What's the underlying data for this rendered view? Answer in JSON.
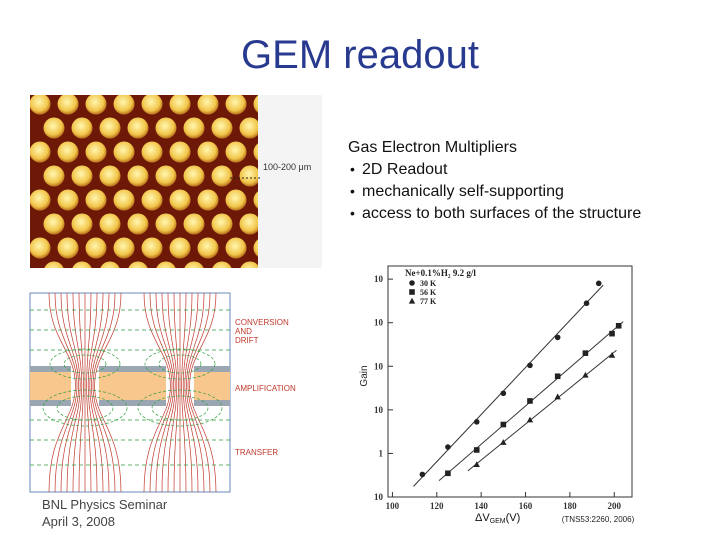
{
  "title": "GEM readout",
  "text_block": {
    "heading": "Gas Electron Multipliers",
    "bullets": [
      "2D Readout",
      "mechanically self-supporting",
      "access to both surfaces of the structure"
    ]
  },
  "photo": {
    "scale_label": "100-200 μm"
  },
  "field_diagram": {
    "labels": [
      "CONVERSION",
      "AND",
      "DRIFT",
      "AMPLIFICATION",
      "TRANSFER"
    ]
  },
  "gain_plot": {
    "type": "scatter",
    "legend_title": "Ne+0.1%H₂ 9.2 g/l",
    "y_label": "Gain",
    "x_label": "ΔV",
    "x_label_sub": "GEM",
    "x_label_unit": "(V)",
    "reference": "(TNS53:2260, 2006)",
    "xlim": [
      98,
      208
    ],
    "xticks": [
      100,
      120,
      140,
      160,
      180,
      200
    ],
    "ylim": [
      0.1,
      20000
    ],
    "log_y": true,
    "yticks": [
      {
        "value": 0.1,
        "label": "10"
      },
      1,
      10,
      {
        "value": 100,
        "label": "10"
      },
      {
        "value": 1000,
        "label": "10"
      },
      {
        "value": 10000,
        "label": "10"
      }
    ],
    "series": [
      {
        "name": "30 K",
        "marker": "circle",
        "color": "#222222",
        "x": [
          113.5,
          125,
          138,
          150,
          162,
          174.5,
          187.5,
          193
        ],
        "values": [
          0.33,
          1.4,
          5.3,
          24,
          105,
          460,
          2800,
          8000
        ]
      },
      {
        "name": "56 K",
        "marker": "square",
        "color": "#222222",
        "x": [
          125,
          138,
          150,
          162,
          174.5,
          187,
          199,
          202
        ],
        "values": [
          0.35,
          1.2,
          4.6,
          16,
          59,
          200,
          560,
          850
        ]
      },
      {
        "name": "77 K",
        "marker": "triangle",
        "color": "#222222",
        "x": [
          138,
          150,
          162,
          174.5,
          187,
          199
        ],
        "values": [
          0.56,
          1.8,
          5.9,
          20,
          63,
          180
        ]
      }
    ]
  },
  "footer": [
    "BNL Physics Seminar",
    "April 3, 2008"
  ]
}
